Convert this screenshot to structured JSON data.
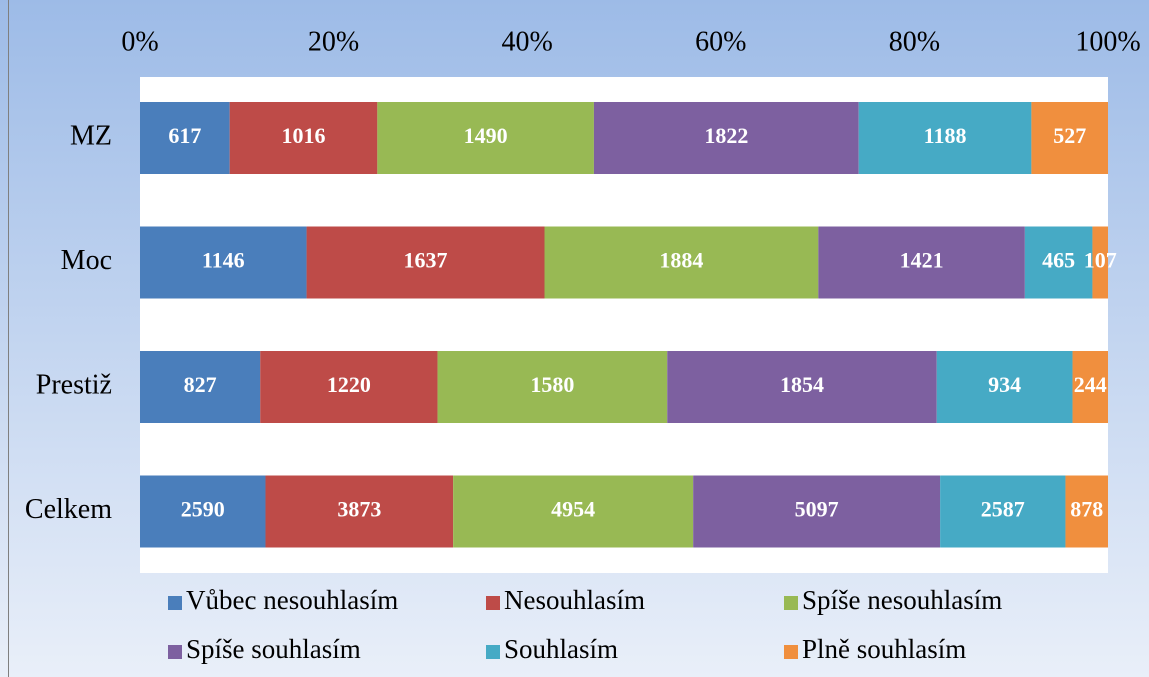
{
  "chart_data": {
    "type": "bar",
    "orientation": "horizontal",
    "stacked": "percent",
    "categories": [
      "MZ",
      "Moc",
      "Prestiž",
      "Celkem"
    ],
    "series": [
      {
        "name": "Vůbec nesouhlasím",
        "color": "#4a7ebb",
        "values": [
          617,
          1146,
          827,
          2590
        ]
      },
      {
        "name": "Nesouhlasím",
        "color": "#be4b48",
        "values": [
          1016,
          1637,
          1220,
          3873
        ]
      },
      {
        "name": "Spíše nesouhlasím",
        "color": "#98b954",
        "values": [
          1490,
          1884,
          1580,
          4954
        ]
      },
      {
        "name": "Spíše souhlasím",
        "color": "#7d60a0",
        "values": [
          1822,
          1421,
          1854,
          5097
        ]
      },
      {
        "name": "Souhlasím",
        "color": "#46aac5",
        "values": [
          1188,
          465,
          934,
          2587
        ]
      },
      {
        "name": "Plně souhlasím",
        "color": "#f08f3e",
        "values": [
          527,
          107,
          244,
          878
        ]
      }
    ],
    "xlim": [
      0,
      100
    ],
    "xticks": [
      {
        "value": 0,
        "label": "0%"
      },
      {
        "value": 20,
        "label": "20%"
      },
      {
        "value": 40,
        "label": "40%"
      },
      {
        "value": 60,
        "label": "60%"
      },
      {
        "value": 80,
        "label": "80%"
      },
      {
        "value": 100,
        "label": "100%"
      }
    ],
    "legend": "bottom",
    "grid": false
  }
}
